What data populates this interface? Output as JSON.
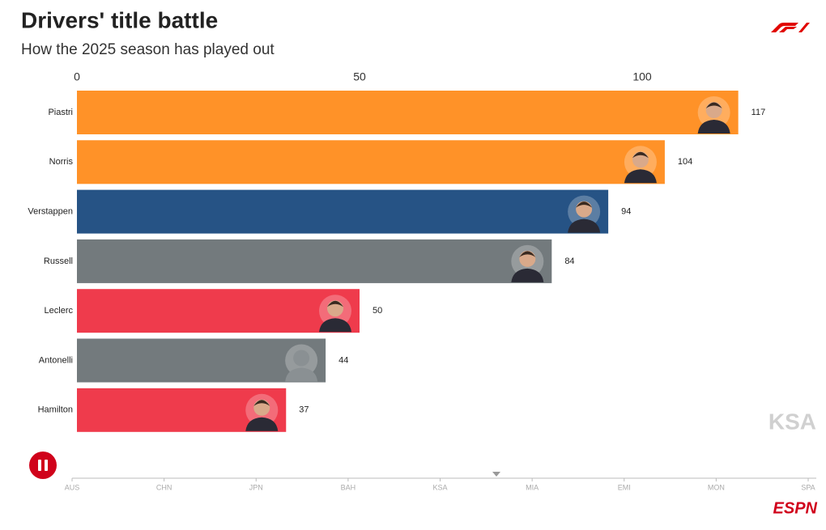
{
  "chart_data": {
    "type": "bar",
    "orientation": "horizontal",
    "title": "Drivers' title battle",
    "subtitle": "How the 2025 season has played out",
    "categories": [
      "Piastri",
      "Norris",
      "Verstappen",
      "Russell",
      "Leclerc",
      "Antonelli",
      "Hamilton"
    ],
    "values": [
      117,
      104,
      94,
      84,
      50,
      44,
      37
    ],
    "colors": [
      "#ff9228",
      "#ff9228",
      "#265385",
      "#737a7d",
      "#ef3b4c",
      "#737a7d",
      "#ef3b4c"
    ],
    "xlim": [
      0,
      130
    ],
    "xticks": [
      0,
      50,
      100
    ],
    "grid": false,
    "current_race": "KSA",
    "races": [
      "AUS",
      "CHN",
      "JPN",
      "BAH",
      "KSA",
      "MIA",
      "EMI",
      "MON",
      "SPA"
    ],
    "brand": "ESPN"
  }
}
